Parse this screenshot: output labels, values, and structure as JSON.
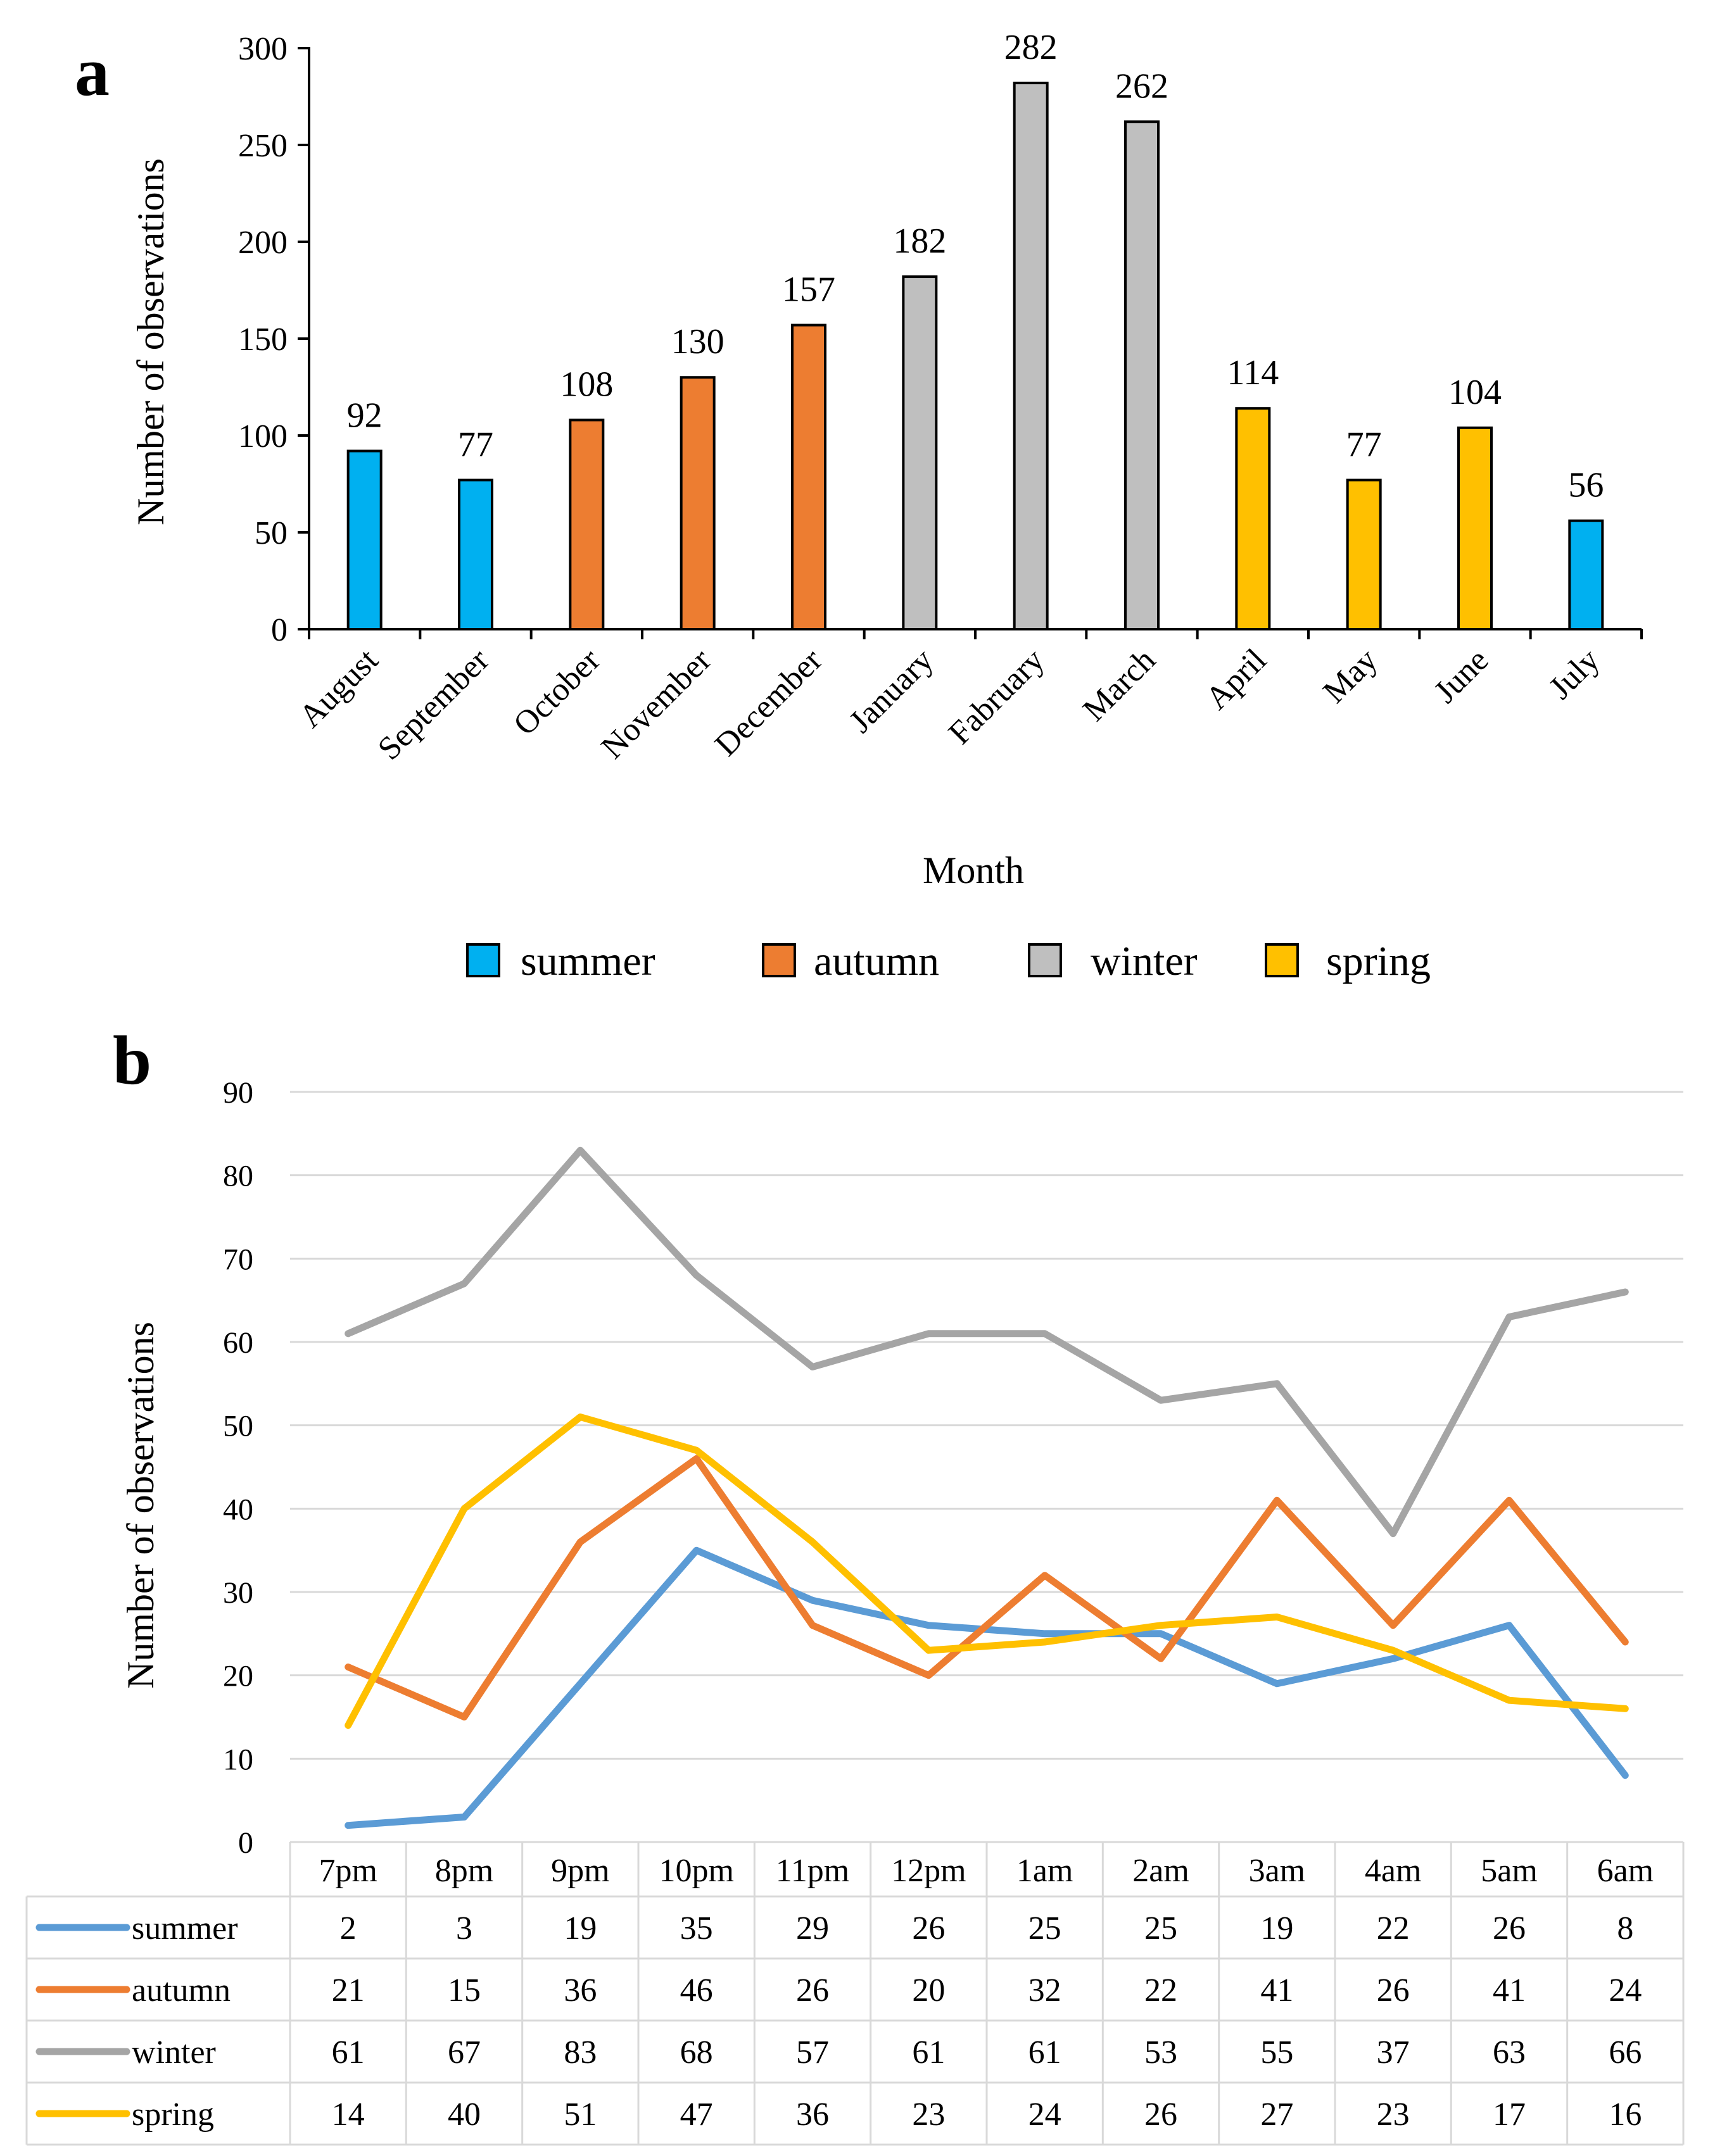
{
  "panel_a_label": "a",
  "panel_b_label": "b",
  "chart_data": [
    {
      "type": "bar",
      "ylabel": "Number of observations",
      "xlabel": "Month",
      "ylim": [
        0,
        300
      ],
      "yticks": [
        0,
        50,
        100,
        150,
        200,
        250,
        300
      ],
      "categories": [
        "August",
        "September",
        "October",
        "November",
        "December",
        "January",
        "Fabruary",
        "March",
        "April",
        "May",
        "June",
        "July"
      ],
      "values": [
        92,
        77,
        108,
        130,
        157,
        182,
        282,
        262,
        114,
        77,
        104,
        56
      ],
      "season": [
        "summer",
        "summer",
        "autumn",
        "autumn",
        "autumn",
        "winter",
        "winter",
        "winter",
        "spring",
        "spring",
        "spring",
        "summer"
      ],
      "legend": [
        {
          "name": "summer",
          "color": "#00b0f0"
        },
        {
          "name": "autumn",
          "color": "#ed7d31"
        },
        {
          "name": "winter",
          "color": "#bfbfbf"
        },
        {
          "name": "spring",
          "color": "#ffc000"
        }
      ]
    },
    {
      "type": "line",
      "ylabel": "Number of observations",
      "ylim": [
        0,
        90
      ],
      "yticks": [
        0,
        10,
        20,
        30,
        40,
        50,
        60,
        70,
        80,
        90
      ],
      "grid": true,
      "categories": [
        "7pm",
        "8pm",
        "9pm",
        "10pm",
        "11pm",
        "12pm",
        "1am",
        "2am",
        "3am",
        "4am",
        "5am",
        "6am"
      ],
      "series": [
        {
          "name": "summer",
          "color": "#5b9bd5",
          "values": [
            2,
            3,
            19,
            35,
            29,
            26,
            25,
            25,
            19,
            22,
            26,
            8
          ]
        },
        {
          "name": "autumn",
          "color": "#ed7d31",
          "values": [
            21,
            15,
            36,
            46,
            26,
            20,
            32,
            22,
            41,
            26,
            41,
            24
          ]
        },
        {
          "name": "winter",
          "color": "#a5a5a5",
          "values": [
            61,
            67,
            83,
            68,
            57,
            61,
            61,
            53,
            55,
            37,
            63,
            66
          ]
        },
        {
          "name": "spring",
          "color": "#ffc000",
          "values": [
            14,
            40,
            51,
            47,
            36,
            23,
            24,
            26,
            27,
            23,
            17,
            16
          ]
        }
      ]
    }
  ]
}
